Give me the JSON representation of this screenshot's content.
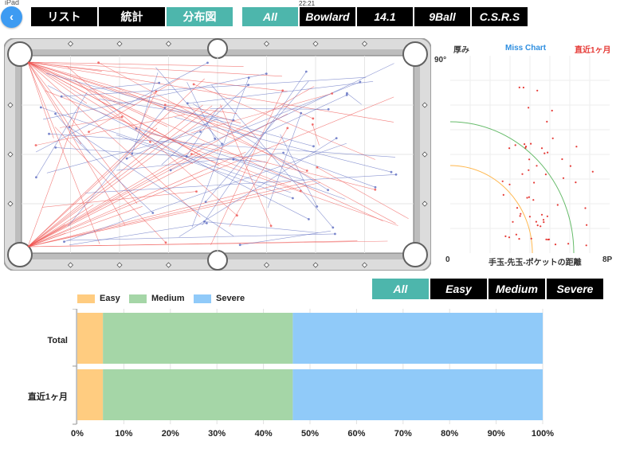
{
  "status": {
    "left": "iPad",
    "time": "22:21"
  },
  "top_tabs": [
    {
      "label": "リスト",
      "active": false
    },
    {
      "label": "統計",
      "active": false
    },
    {
      "label": "分布図",
      "active": true
    }
  ],
  "game_tabs": [
    {
      "label": "All",
      "active": true
    },
    {
      "label": "Bowlard",
      "active": false
    },
    {
      "label": "14.1",
      "active": false
    },
    {
      "label": "9Ball",
      "active": false
    },
    {
      "label": "C.S.R.S",
      "active": false
    }
  ],
  "miss_chart": {
    "left_label": "厚み",
    "title": "Miss Chart",
    "right_label": "直近1ヶ月",
    "y_top_label": "90°",
    "x_left_label": "0",
    "x_axis_label": "手玉-先玉-ポケットの距離",
    "x_right_label": "8P",
    "colors": {
      "title": "#2f8fe0",
      "right_label": "#e53935",
      "point": "#e53935",
      "outer_arc": "#66bb6a",
      "inner_arc": "#ffb74d"
    }
  },
  "difficulty_tabs": [
    {
      "label": "All",
      "active": true
    },
    {
      "label": "Easy",
      "active": false
    },
    {
      "label": "Medium",
      "active": false
    },
    {
      "label": "Severe",
      "active": false
    }
  ],
  "colors": {
    "accent": "#4db6ac",
    "back": "#3d9bf2",
    "easy": "#ffcc80",
    "medium": "#a5d6a7",
    "severe": "#90caf9",
    "shot_red": "#ef5350",
    "shot_blue": "#5c6bc0"
  },
  "chart_data": {
    "type": "bar",
    "orientation": "horizontal",
    "stacked": true,
    "categories": [
      "Total",
      "直近1ヶ月"
    ],
    "series": [
      {
        "name": "Easy",
        "values": [
          5.5,
          5.5
        ],
        "color": "#ffcc80"
      },
      {
        "name": "Medium",
        "values": [
          40.8,
          40.8
        ],
        "color": "#a5d6a7"
      },
      {
        "name": "Severe",
        "values": [
          53.7,
          53.7
        ],
        "color": "#90caf9"
      }
    ],
    "xlim": [
      0,
      100
    ],
    "x_ticks": [
      "0%",
      "10%",
      "20%",
      "30%",
      "40%",
      "50%",
      "60%",
      "70%",
      "80%",
      "90%",
      "100%"
    ],
    "grid": true,
    "legend": "top-left"
  }
}
